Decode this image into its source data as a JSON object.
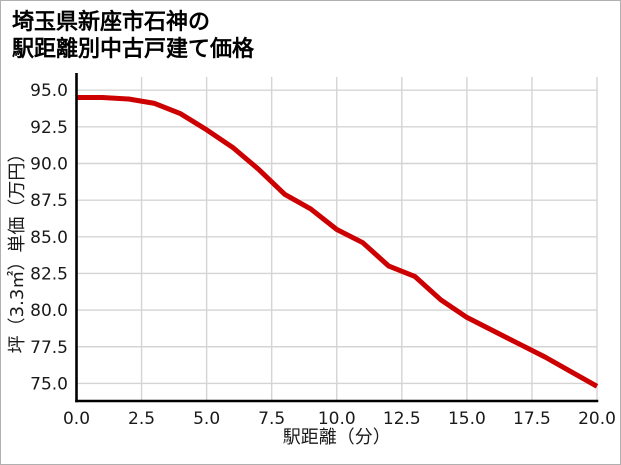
{
  "page": {
    "title_line1": "埼玉県新座市石神の",
    "title_line2": "駅距離別中古戸建て価格"
  },
  "chart_data": {
    "type": "line",
    "title": "埼玉県新座市石神の駅距離別中古戸建て価格",
    "xlabel": "駅距離（分）",
    "ylabel": "坪（3.3㎡）単価（万円）",
    "x": [
      0,
      1,
      2,
      3,
      4,
      5,
      6,
      7,
      8,
      9,
      10,
      11,
      12,
      13,
      14,
      15,
      16,
      17,
      18,
      19,
      20
    ],
    "values": [
      94.5,
      94.5,
      94.4,
      94.1,
      93.4,
      92.3,
      91.1,
      89.6,
      87.9,
      86.9,
      85.5,
      84.6,
      83.0,
      82.3,
      80.7,
      79.5,
      78.6,
      77.7,
      76.8,
      75.8,
      74.8
    ],
    "xlim": [
      0,
      20
    ],
    "ylim": [
      73.8,
      95.9
    ],
    "xticks": [
      0,
      2.5,
      5,
      7.5,
      10,
      12.5,
      15,
      17.5,
      20
    ],
    "xtick_labels": [
      "0.0",
      "2.5",
      "5.0",
      "7.5",
      "10.0",
      "12.5",
      "15.0",
      "17.5",
      "20.0"
    ],
    "yticks": [
      75,
      77.5,
      80,
      82.5,
      85,
      87.5,
      90,
      92.5,
      95
    ],
    "ytick_labels": [
      "75.0",
      "77.5",
      "80.0",
      "82.5",
      "85.0",
      "87.5",
      "90.0",
      "92.5",
      "95.0"
    ],
    "grid": true,
    "legend": "none",
    "line_color": "#cc0000",
    "grid_color": "#d4d4d4",
    "spine_color": "#000000",
    "text_color": "#1a1a1a",
    "background": "#ffffff",
    "border_color": "#b0b0b0"
  }
}
